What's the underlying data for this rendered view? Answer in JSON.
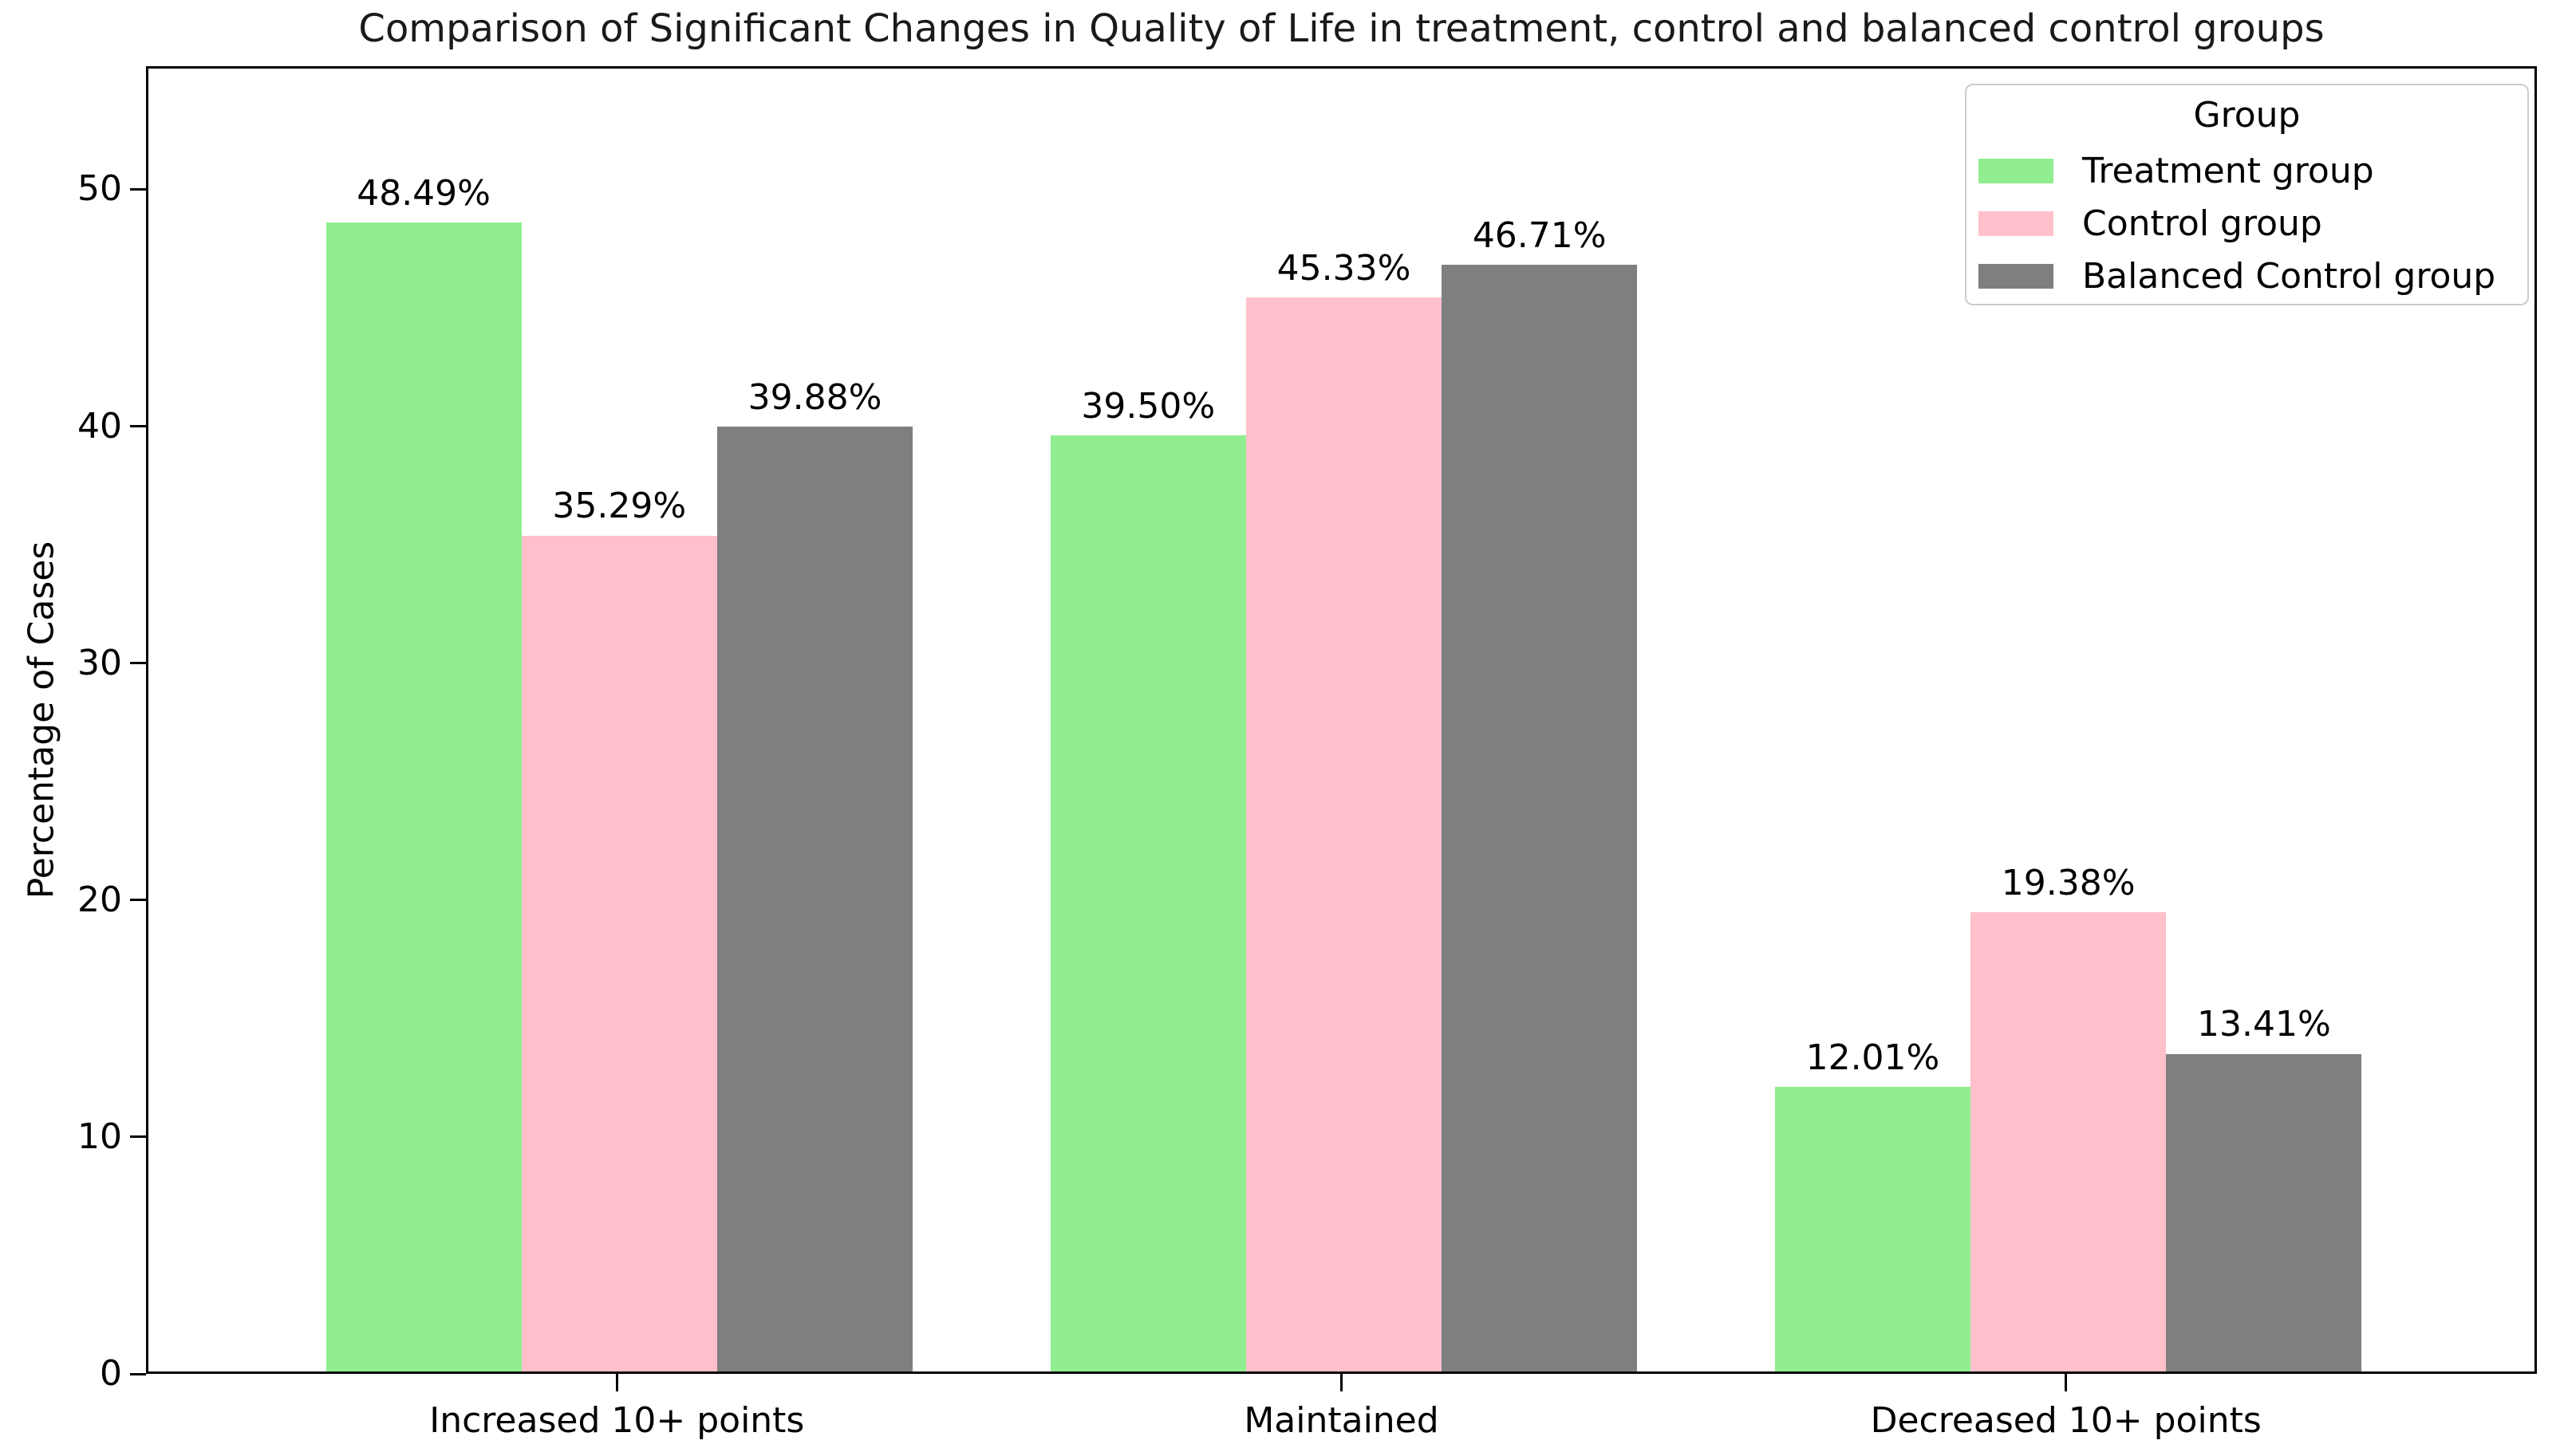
{
  "chart_data": {
    "type": "bar",
    "title": "Comparison of Significant Changes in Quality of Life in treatment, control and balanced control groups",
    "xlabel": "",
    "ylabel": "Percentage of Cases",
    "categories": [
      "Increased 10+ points",
      "Maintained",
      "Decreased 10+ points"
    ],
    "series": [
      {
        "name": "Treatment group",
        "color": "#90EE90",
        "values": [
          48.49,
          39.5,
          12.01
        ],
        "labels": [
          "48.49%",
          "39.50%",
          "12.01%"
        ]
      },
      {
        "name": "Control group",
        "color": "#FFC0CB",
        "values": [
          35.29,
          45.33,
          19.38
        ],
        "labels": [
          "35.29%",
          "45.33%",
          "19.38%"
        ]
      },
      {
        "name": "Balanced Control group",
        "color": "#7F7F7F",
        "values": [
          39.88,
          46.71,
          13.41
        ],
        "labels": [
          "39.88%",
          "46.71%",
          "13.41%"
        ]
      }
    ],
    "yticks": [
      0,
      10,
      20,
      30,
      40,
      50
    ],
    "ylim": [
      0,
      55.2
    ],
    "xlim": [
      -0.65,
      2.65
    ],
    "bar_width_frac": 0.27,
    "grid": "off",
    "legend": {
      "title": "Group",
      "position": "upper right"
    }
  }
}
